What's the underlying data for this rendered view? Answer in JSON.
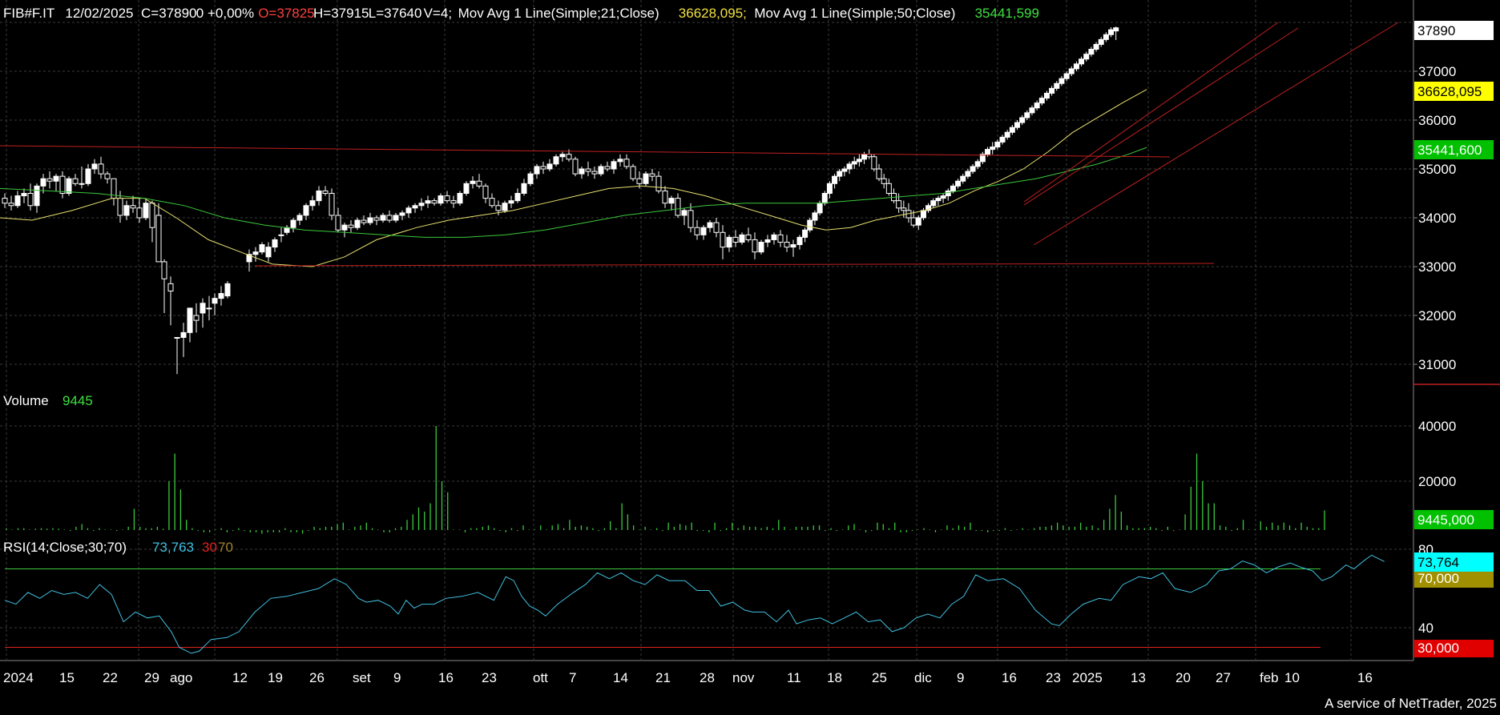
{
  "header": {
    "symbol": "FIB#F.IT",
    "date": "12/02/2025",
    "close_text": "C=37890",
    "change_text": "0 +0,00%",
    "open_text": "O=37825",
    "high_text": "H=37915",
    "low_text": "L=37640",
    "volume_text": "V=4;",
    "ma21_label": "Mov Avg 1 Line(Simple;21;Close)",
    "ma21_value": "36628,095;",
    "ma50_label": "Mov Avg 1 Line(Simple;50;Close)",
    "ma50_value": "35441,599"
  },
  "volume_panel": {
    "label": "Volume",
    "value": "9445"
  },
  "rsi_panel": {
    "label": "RSI(14;Close;30;70)",
    "value": "73,763",
    "low_level": "30",
    "high_level": "70"
  },
  "right_axis": {
    "price_ticks": [
      "37000",
      "36000",
      "35000",
      "34000",
      "33000",
      "32000",
      "31000"
    ],
    "volume_ticks": [
      "40000",
      "20000"
    ],
    "rsi_ticks": [
      "80",
      "40"
    ],
    "badges": {
      "last_price": "37890",
      "ma21": "36628,095",
      "ma50": "35441,600",
      "volume": "9445,000",
      "rsi": "73,764",
      "rsi_high": "70,000",
      "rsi_low": "30,000"
    }
  },
  "x_axis_labels": [
    "2024",
    "15",
    "22",
    "29",
    "ago",
    "12",
    "19",
    "26",
    "set",
    "9",
    "16",
    "23",
    "ott",
    "7",
    "14",
    "21",
    "28",
    "nov",
    "11",
    "18",
    "25",
    "dic",
    "9",
    "16",
    "23",
    "2025",
    "13",
    "20",
    "27",
    "feb",
    "10",
    "16"
  ],
  "footer": "A service of NetTrader, 2025",
  "colors": {
    "background": "#000000",
    "grid": "#3a3a3a",
    "candle_up": "#ffffff",
    "candle_down": "#ffffff",
    "ma21": "#e8e070",
    "ma50": "#3cc83c",
    "trendline": "#c02020",
    "volume_bar": "#3cc83c",
    "rsi_line": "#40c0e0",
    "rsi_high_line": "#3cc83c",
    "rsi_low_line": "#e02020",
    "text": "#ffffff",
    "ma21_text": "#f0e040",
    "ma50_text": "#40e040",
    "open_text": "#ff4040"
  },
  "chart_data": [
    {
      "type": "candlestick",
      "title": "FIB#F.IT",
      "ylim": [
        30600,
        37950
      ],
      "last": {
        "date": "12/02/2025",
        "open": 37825,
        "high": 37915,
        "low": 37640,
        "close": 37890
      },
      "moving_averages": [
        {
          "name": "Mov Avg 1 Line(Simple;21;Close)",
          "last_value": 36628.095
        },
        {
          "name": "Mov Avg 1 Line(Simple;50;Close)",
          "last_value": 35441.599
        }
      ],
      "grid": true
    },
    {
      "type": "bar",
      "title": "Volume",
      "last_value": 9445,
      "ylim": [
        0,
        50000
      ],
      "values": [
        3000,
        2500,
        3000,
        3000,
        2500,
        2800,
        3000,
        2800,
        3000,
        2800,
        2500,
        2000,
        3500,
        4500,
        3000,
        2000,
        3000,
        2500,
        2500,
        2000,
        2500,
        3500,
        10000,
        3500,
        3000,
        3000,
        3500,
        2800,
        20000,
        30000,
        17000,
        6000,
        3000,
        2000,
        1500,
        1500,
        2500,
        3000,
        1500,
        2000,
        3000,
        2000,
        1500,
        1500,
        1000,
        1500,
        1500,
        1500,
        3000,
        1500,
        1500,
        1000,
        2000,
        3500,
        3000,
        3500,
        3500,
        4500,
        5000,
        2500,
        3500,
        4000,
        5000,
        3000,
        2500,
        1500,
        1500,
        3000,
        3500,
        6000,
        8000,
        10500,
        9000,
        12000,
        40000,
        20000,
        16000,
        2500,
        2500,
        1500,
        3000,
        3000,
        3500,
        4000,
        3000,
        2000,
        1500,
        3000,
        2000,
        4000,
        2500,
        2500,
        4000,
        2500,
        4000,
        4500,
        3000,
        6000,
        3500,
        4000,
        3500,
        3000,
        2000,
        3000,
        5500,
        3000,
        12000,
        8000,
        4000,
        2500,
        3500,
        2500,
        3000,
        2000,
        5000,
        3500,
        4500,
        4000,
        5000,
        2000,
        2000,
        1500,
        5000,
        2000,
        3000,
        5000,
        3000,
        4000,
        3500,
        3500,
        3000,
        3500,
        3000,
        6000,
        3500,
        2500,
        3500,
        3500,
        3500,
        4000,
        4000,
        2000,
        3000,
        2000,
        2500,
        4000,
        4500,
        2500,
        1500,
        2000,
        5000,
        4500,
        3000,
        5000,
        1500,
        1500,
        2000,
        2500,
        3000,
        2500,
        1500,
        2500,
        4000,
        3000,
        4000,
        3500,
        5000,
        2000,
        2000,
        1500,
        2000,
        2000,
        3000,
        2000,
        2500,
        3000,
        2500,
        3000,
        3500,
        3500,
        4000,
        5000,
        4000,
        3500,
        3500,
        5000,
        3500,
        4000,
        3000,
        6000,
        10000,
        15000,
        9000,
        4000,
        3000,
        3000,
        3000,
        3500,
        3000,
        2000,
        3500,
        2000,
        2500,
        8000,
        18000,
        30000,
        20000,
        12000,
        12000,
        4000,
        3500,
        2000,
        3000,
        6000,
        2500,
        2500,
        5500,
        3500,
        5000,
        4000,
        5000,
        4000,
        3000,
        5000,
        3500,
        3000,
        3000,
        9445
      ]
    },
    {
      "type": "line",
      "title": "RSI(14;Close;30;70)",
      "last_value": 73.763,
      "ylim": [
        25,
        90
      ],
      "levels": [
        30,
        70
      ]
    }
  ]
}
